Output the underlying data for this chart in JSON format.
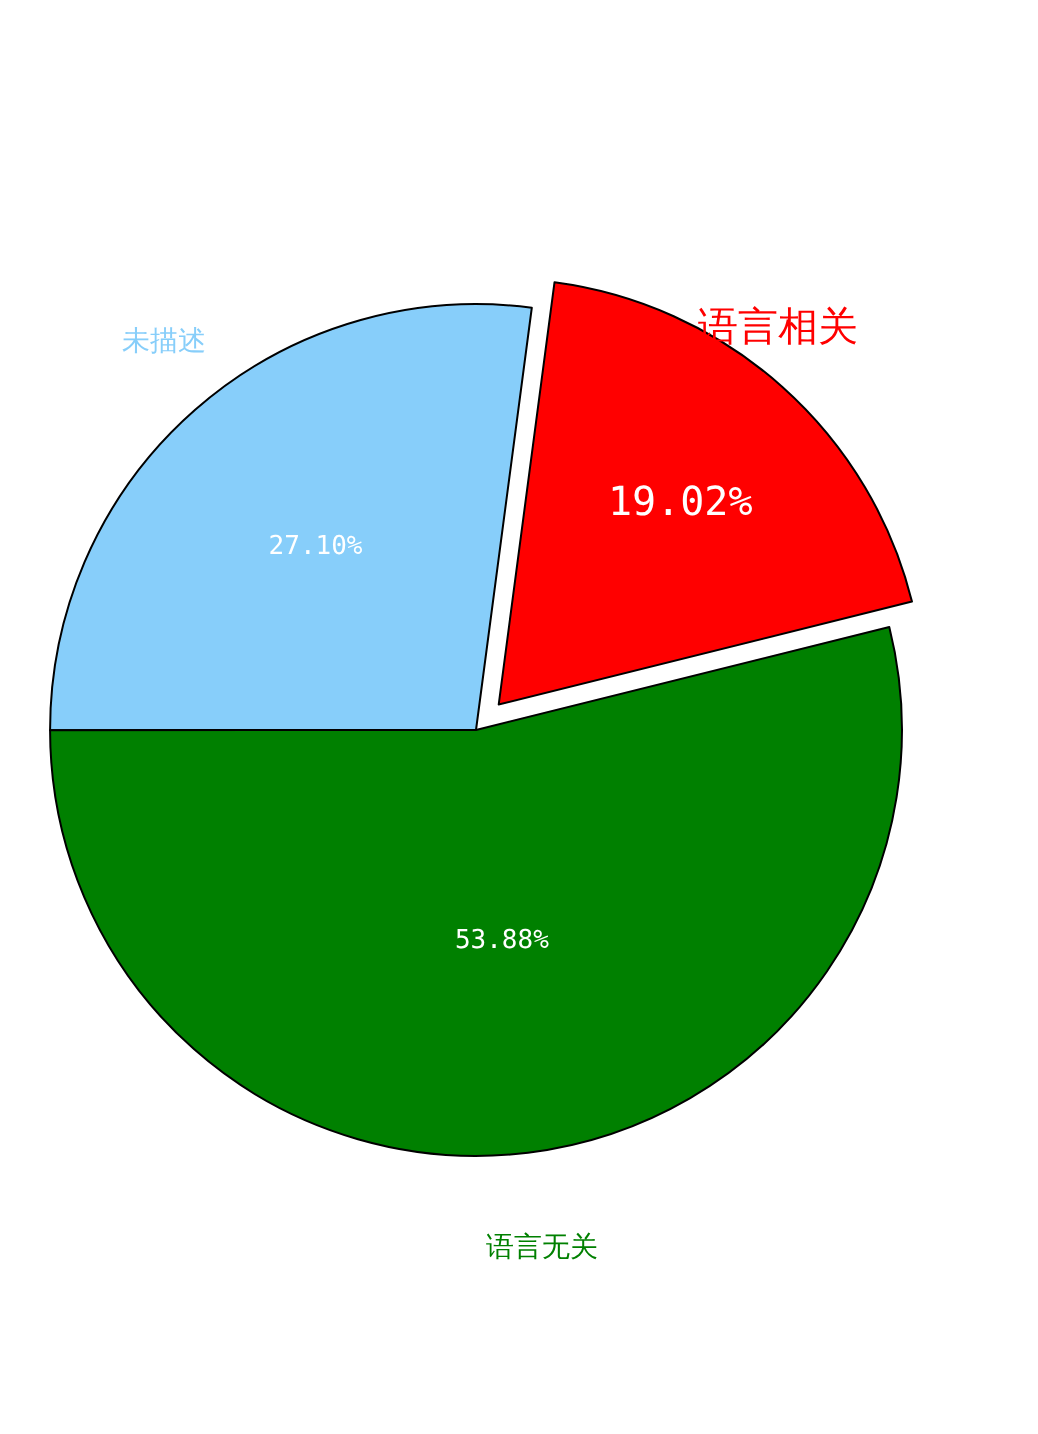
{
  "chart_data": {
    "type": "pie",
    "categories": [
      "语言相关",
      "未描述",
      "语言无关"
    ],
    "values": [
      19.02,
      27.1,
      53.88
    ],
    "colors": [
      "#ff0000",
      "#87cefa",
      "#008000"
    ],
    "value_labels": [
      "19.02%",
      "27.10%",
      "53.88%"
    ],
    "legend": false
  }
}
